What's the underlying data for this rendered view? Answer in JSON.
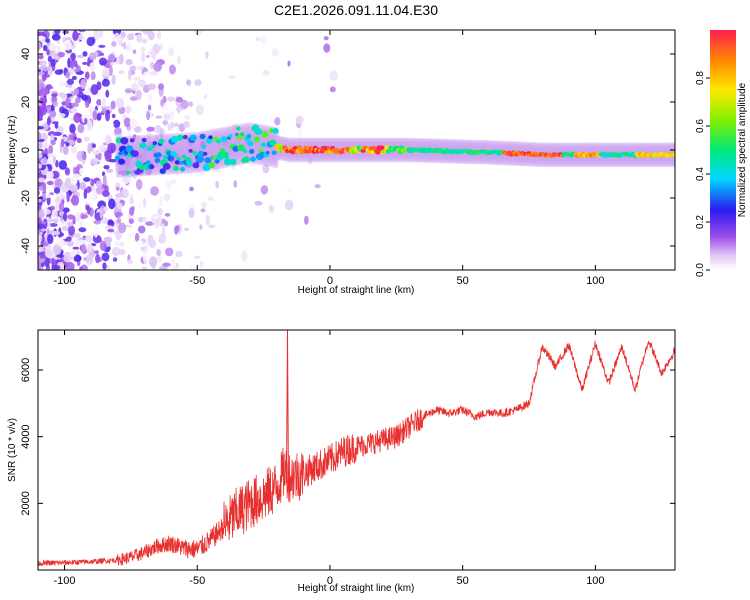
{
  "title": "C2E1.2026.091.11.04.E30",
  "chart_data": [
    {
      "type": "heatmap",
      "name": "spectrogram",
      "xlabel": "Height of straight line (km)",
      "ylabel": "Frequency (Hz)",
      "xlim": [
        -110,
        130
      ],
      "ylim": [
        -50,
        50
      ],
      "xticks": [
        -100,
        -50,
        0,
        50,
        100
      ],
      "yticks": [
        -40,
        -20,
        0,
        20,
        40
      ],
      "ridge": {
        "x": [
          -110,
          -80,
          -65,
          -50,
          -40,
          -30,
          -20,
          -15,
          0,
          10,
          30,
          60,
          80,
          90,
          100,
          110,
          130
        ],
        "frequency": [
          -4,
          -3,
          -2,
          -1,
          1,
          3,
          1,
          0,
          0,
          0,
          0,
          -1,
          -2,
          -2,
          -2,
          -2,
          -2
        ]
      },
      "colorbar": {
        "label": "Normalized spectral amplitude",
        "range": [
          0,
          1
        ],
        "ticks": [
          "0.0",
          "0.2",
          "0.4",
          "0.6",
          "0.8"
        ]
      }
    },
    {
      "type": "line",
      "name": "snr",
      "xlabel": "Height of straight line (km)",
      "ylabel": "SNR (10 * v/v)",
      "xlim": [
        -110,
        130
      ],
      "ylim": [
        0,
        7200
      ],
      "xticks": [
        -100,
        -50,
        0,
        50,
        100
      ],
      "yticks": [
        2000,
        4000,
        6000
      ],
      "series": [
        {
          "name": "SNR",
          "color": "#e8312f",
          "x": [
            -110,
            -100,
            -90,
            -80,
            -75,
            -70,
            -65,
            -60,
            -55,
            -50,
            -45,
            -40,
            -35,
            -30,
            -25,
            -20,
            -17,
            -15,
            -10,
            -5,
            0,
            5,
            10,
            15,
            20,
            25,
            30,
            35,
            40,
            45,
            50,
            55,
            60,
            65,
            70,
            75,
            80,
            85,
            90,
            95,
            100,
            105,
            110,
            115,
            120,
            125,
            130
          ],
          "values": [
            200,
            220,
            250,
            300,
            380,
            520,
            720,
            800,
            650,
            620,
            900,
            1300,
            1700,
            2000,
            2200,
            2500,
            3000,
            2800,
            2900,
            3100,
            3300,
            3550,
            3700,
            3800,
            3900,
            4000,
            4300,
            4600,
            4800,
            4700,
            4800,
            4600,
            4750,
            4700,
            4800,
            5000,
            6700,
            6100,
            6750,
            5400,
            6800,
            5600,
            6700,
            5400,
            6900,
            5900,
            6600
          ]
        }
      ],
      "spike": {
        "x": -16,
        "value": 7200
      }
    }
  ]
}
